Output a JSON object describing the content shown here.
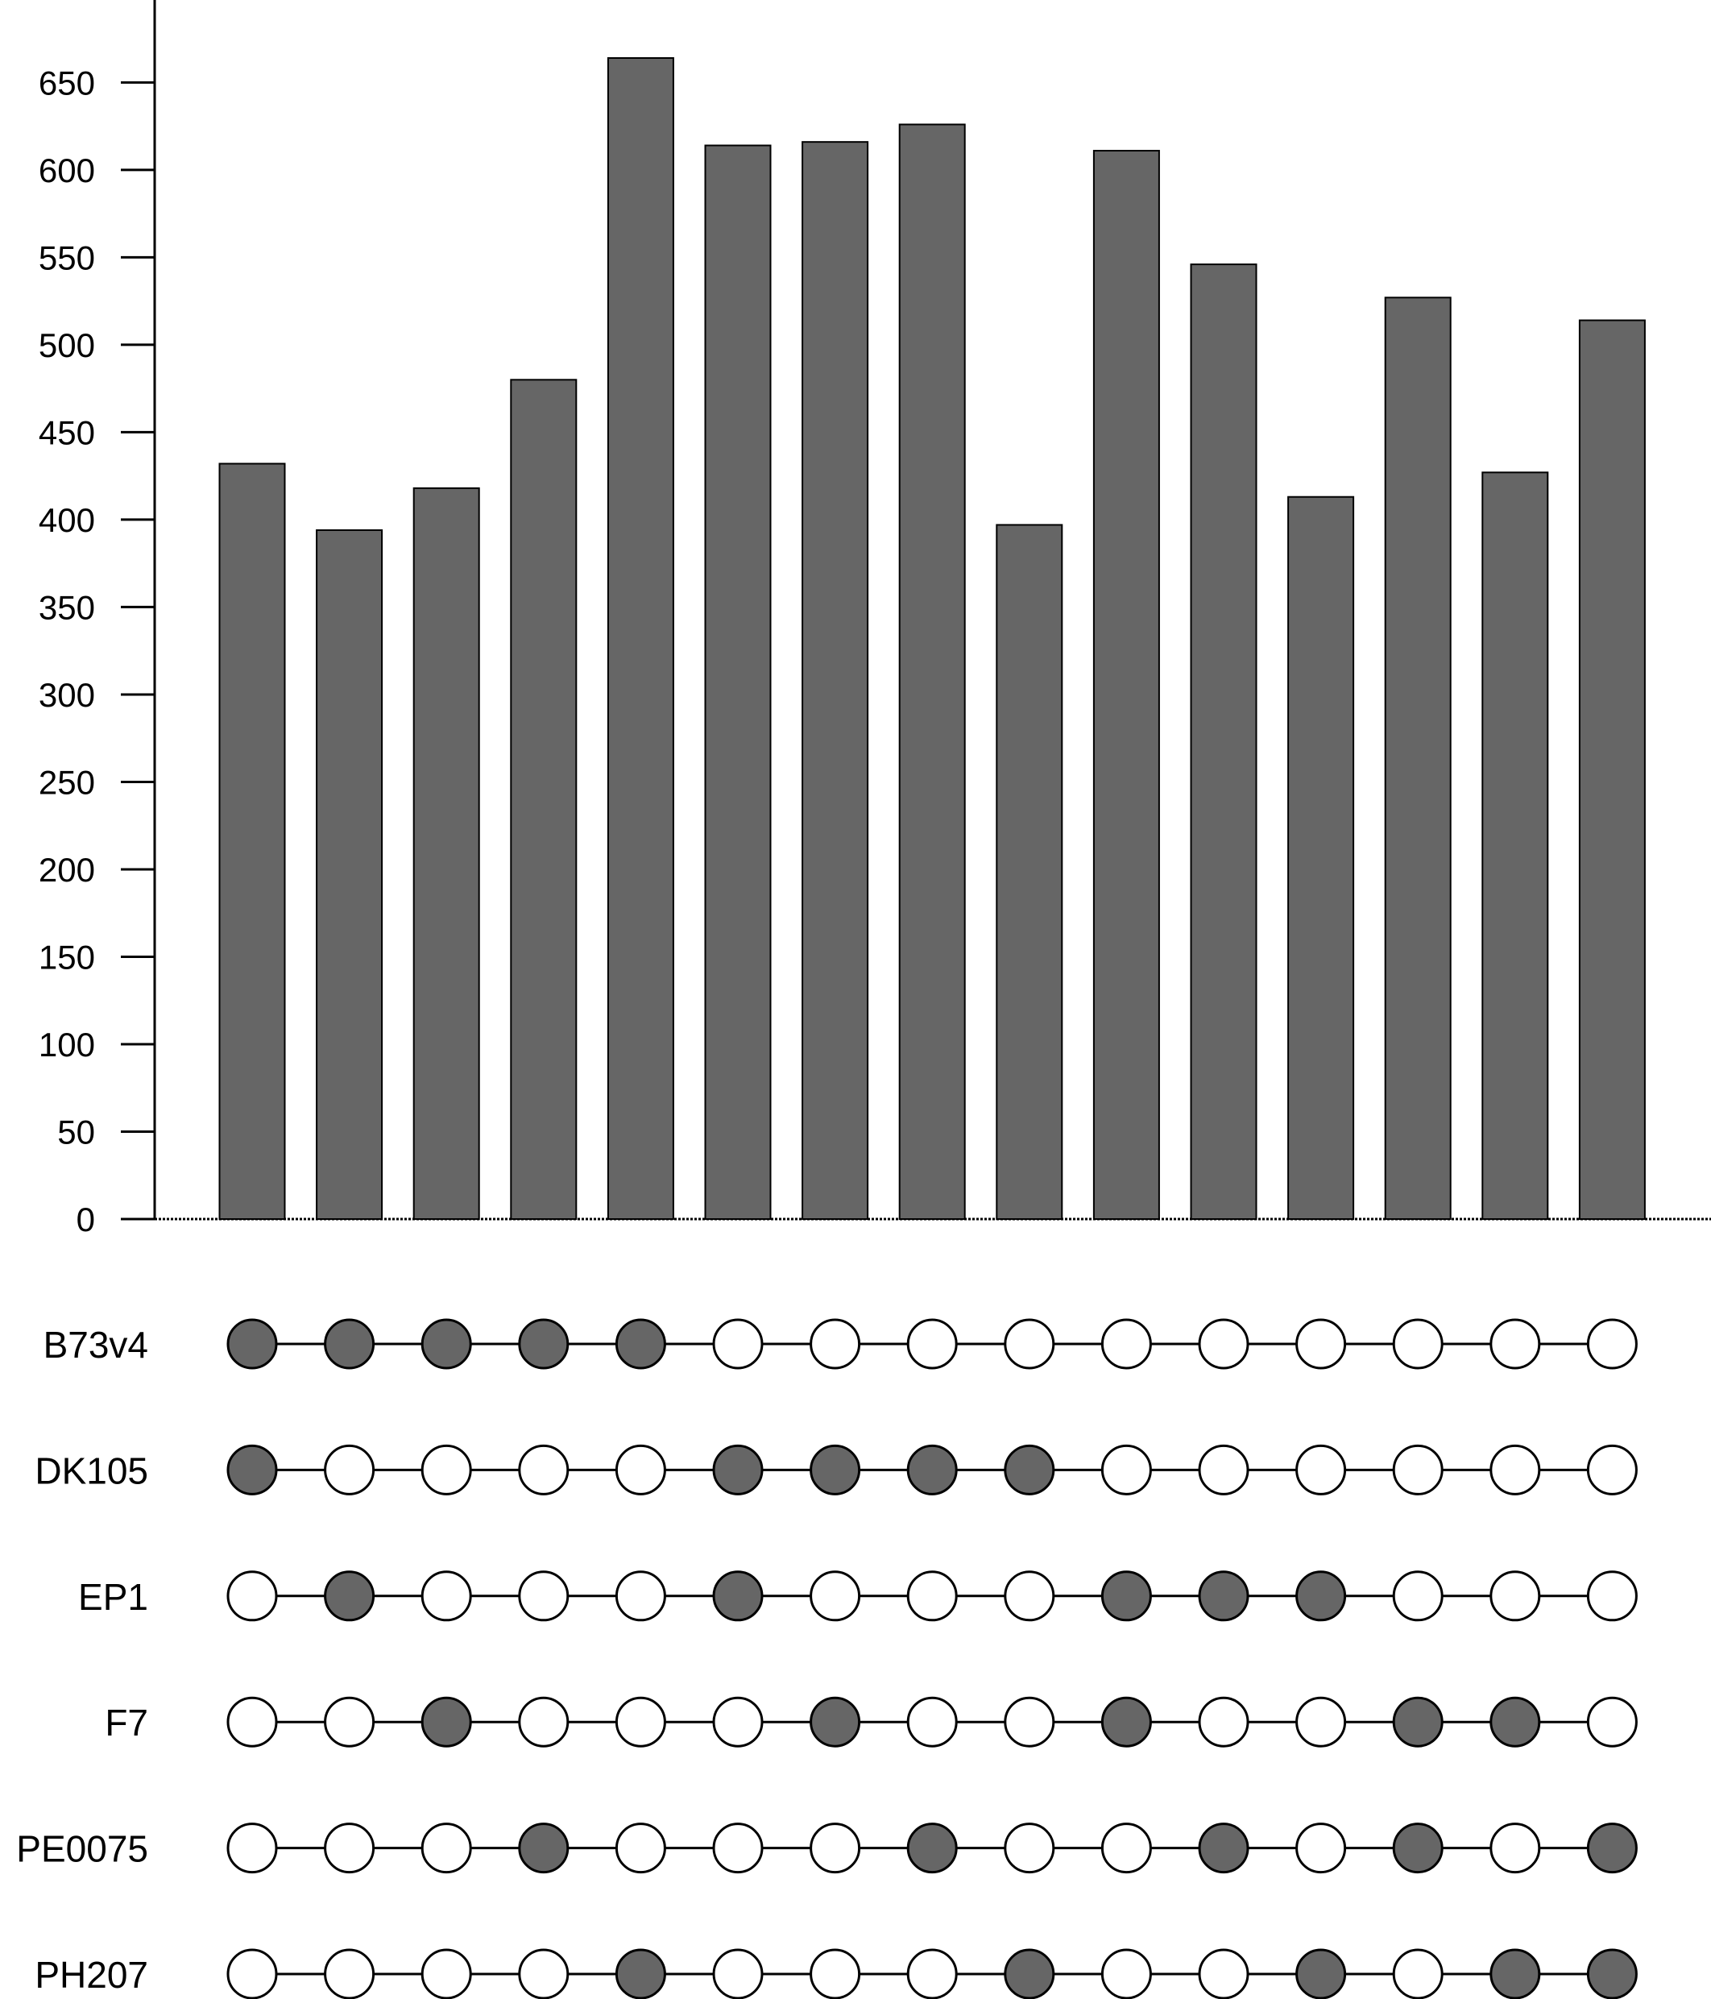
{
  "chart_data": {
    "type": "bar",
    "subtype": "upset",
    "title": "",
    "xlabel": "",
    "ylabel": "",
    "ylim": [
      0,
      700
    ],
    "yticks": [
      0,
      50,
      100,
      150,
      200,
      250,
      300,
      350,
      400,
      450,
      500,
      550,
      600,
      650
    ],
    "grid": false,
    "bar_color": "#666666",
    "empty_dot_color": "#ffffff",
    "values": [
      432,
      394,
      418,
      480,
      664,
      614,
      616,
      626,
      397,
      611,
      546,
      413,
      527,
      427,
      514
    ],
    "sets": [
      {
        "name": "B73v4",
        "membership": [
          1,
          1,
          1,
          1,
          1,
          0,
          0,
          0,
          0,
          0,
          0,
          0,
          0,
          0,
          0
        ]
      },
      {
        "name": "DK105",
        "membership": [
          1,
          0,
          0,
          0,
          0,
          1,
          1,
          1,
          1,
          0,
          0,
          0,
          0,
          0,
          0
        ]
      },
      {
        "name": "EP1",
        "membership": [
          0,
          1,
          0,
          0,
          0,
          1,
          0,
          0,
          0,
          1,
          1,
          1,
          0,
          0,
          0
        ]
      },
      {
        "name": "F7",
        "membership": [
          0,
          0,
          1,
          0,
          0,
          0,
          1,
          0,
          0,
          1,
          0,
          0,
          1,
          1,
          0
        ]
      },
      {
        "name": "PE0075",
        "membership": [
          0,
          0,
          0,
          1,
          0,
          0,
          0,
          1,
          0,
          0,
          1,
          0,
          1,
          0,
          1
        ]
      },
      {
        "name": "PH207",
        "membership": [
          0,
          0,
          0,
          0,
          1,
          0,
          0,
          0,
          1,
          0,
          0,
          1,
          0,
          1,
          1
        ]
      }
    ]
  }
}
